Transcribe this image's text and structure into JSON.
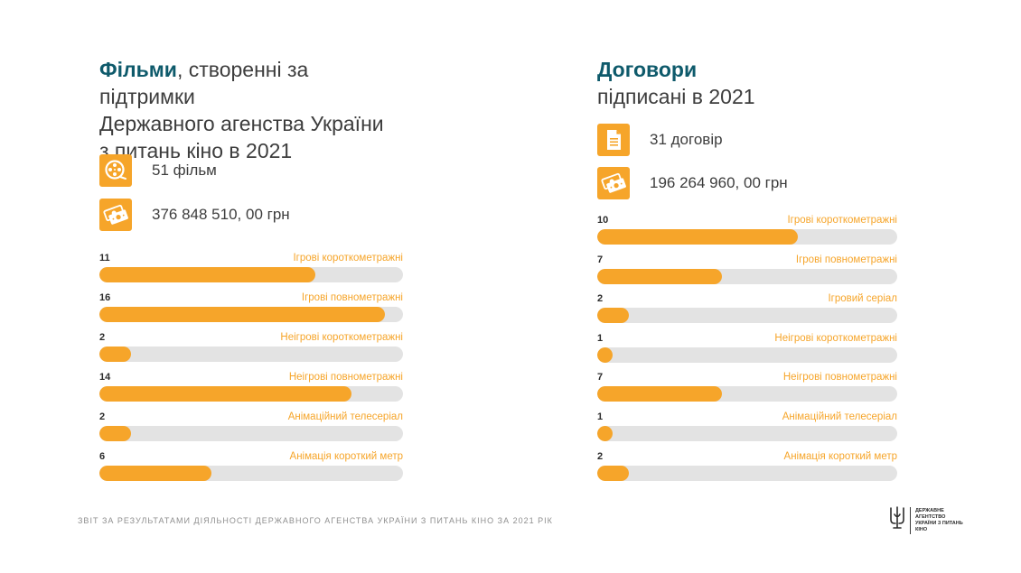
{
  "left": {
    "title_accent": "Фільми",
    "title_rest_1": ", створенні за підтримки",
    "title_line_2": "Державного агенства України",
    "title_line_3": "з питань кіно в 2021",
    "stats": [
      {
        "icon": "film-reel-icon",
        "text": "51 фільм"
      },
      {
        "icon": "money-icon",
        "text": "376 848 510, 00 грн"
      }
    ]
  },
  "right": {
    "title_accent": "Договори",
    "title_line_2": "підписані в 2021",
    "stats": [
      {
        "icon": "document-icon",
        "text": "31 договір"
      },
      {
        "icon": "money-icon",
        "text": "196 264 960, 00 грн"
      }
    ]
  },
  "chart_data": [
    {
      "type": "bar",
      "title": "Фільми, створенні за підтримки Державного агенства України з питань кіно в 2021",
      "orientation": "horizontal",
      "categories": [
        "Ігрові короткометражні",
        "Ігрові повнометражні",
        "Неігрові короткометражні",
        "Неігрові повнометражні",
        "Анімаційний телесеріал",
        "Анімація короткий метр"
      ],
      "values": [
        11,
        16,
        2,
        14,
        2,
        6
      ],
      "fill_fractions": [
        0.71,
        0.94,
        0.105,
        0.83,
        0.105,
        0.37
      ],
      "color": "#f6a52a",
      "track_color": "#e3e3e3"
    },
    {
      "type": "bar",
      "title": "Договори підписані в 2021",
      "orientation": "horizontal",
      "categories": [
        "Ігрові короткометражні",
        "Ігрові повнометражні",
        "Ігровий серіал",
        "Неігрові короткометражні",
        "Неігрові повнометражні",
        "Анімаційний телесеріал",
        "Анімація короткий метр"
      ],
      "values": [
        10,
        7,
        2,
        1,
        7,
        1,
        2
      ],
      "fill_fractions": [
        0.67,
        0.415,
        0.105,
        0.05,
        0.415,
        0.05,
        0.105
      ],
      "color": "#f6a52a",
      "track_color": "#e3e3e3"
    }
  ],
  "footer": {
    "text": "Звіт за результатами діяльності Державного агенства України з питань кіно за 2021 рік",
    "logo_line_1": "ДЕРЖАВНЕ АГЕНТСТВО",
    "logo_line_2": "УКРАЇНИ З ПИТАНЬ КІНО"
  },
  "colors": {
    "accent": "#f6a52a",
    "title_accent": "#0e5a6b",
    "track": "#e3e3e3"
  }
}
